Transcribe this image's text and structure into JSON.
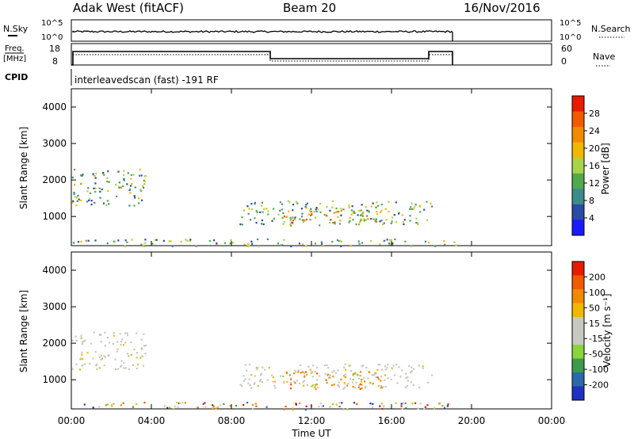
{
  "header": {
    "station": "Adak West (fitACF)",
    "beam": "Beam 20",
    "date": "16/Nov/2016"
  },
  "panels": {
    "nsky": {
      "label": "N.Sky",
      "right_label": "N.Search",
      "ticks_left": [
        "10^5",
        "10^0"
      ],
      "ticks_right": [
        "10^5",
        "10^0"
      ]
    },
    "freq": {
      "label_line1": "Freq.",
      "label_line2": "[MHz]",
      "right_label": "Nave",
      "ticks_left": [
        "18",
        "8"
      ],
      "ticks_right": [
        "60",
        "0"
      ]
    },
    "cpid": {
      "label": "CPID",
      "text": "interleavedscan (fast) -191 RF"
    }
  },
  "colors": {
    "power": [
      "#1a1aff",
      "#2a4aa8",
      "#3c8c8c",
      "#52a84a",
      "#a8d44a",
      "#f2b800",
      "#f28a00",
      "#f25a00",
      "#e81a00"
    ],
    "velocity": [
      "#e81a00",
      "#f25a00",
      "#f28a00",
      "#f2b800",
      "#c8c8c0",
      "#c8c8c0",
      "#8ad43c",
      "#3c9a4a",
      "#2a6aa8",
      "#2030c0"
    ]
  },
  "chart_data": [
    {
      "type": "heatmap",
      "name": "power",
      "ylabel": "Slant Range [km]",
      "yticks": [
        "4000",
        "3000",
        "2000",
        "1000"
      ],
      "ytick_values": [
        4000,
        3000,
        2000,
        1000
      ],
      "ylim": [
        200,
        4500
      ],
      "xlim": [
        0,
        24
      ],
      "colorbar_label": "Power [dB]",
      "colorbar_ticks": [
        "28",
        "24",
        "20",
        "16",
        "12",
        "8",
        "4"
      ],
      "colorbar_values": [
        28,
        24,
        20,
        16,
        12,
        8,
        4
      ],
      "colorbar_range": [
        0,
        32
      ],
      "regions": [
        {
          "t0": 0.0,
          "t1": 3.7,
          "r0": 1300,
          "r1": 2350,
          "level": 10
        },
        {
          "t0": 8.4,
          "t1": 18.0,
          "r0": 800,
          "r1": 1450,
          "level": 12
        },
        {
          "t0": 10.5,
          "t1": 15.5,
          "r0": 750,
          "r1": 1200,
          "level": 20
        },
        {
          "t0": 0.0,
          "t1": 19.2,
          "r0": 200,
          "r1": 400,
          "level": 12
        }
      ]
    },
    {
      "type": "heatmap",
      "name": "velocity",
      "ylabel": "Slant Range [km]",
      "yticks": [
        "4000",
        "3000",
        "2000",
        "1000"
      ],
      "ytick_values": [
        4000,
        3000,
        2000,
        1000
      ],
      "ylim": [
        200,
        4500
      ],
      "xlim": [
        0,
        24
      ],
      "xlabel": "Time UT",
      "xticks": [
        "00:00",
        "04:00",
        "08:00",
        "12:00",
        "16:00",
        "20:00",
        "00:00"
      ],
      "xtick_values": [
        0,
        4,
        8,
        12,
        16,
        20,
        24
      ],
      "colorbar_label": "Velocity [m s⁻¹]",
      "colorbar_ticks": [
        "200",
        "100",
        "50",
        "15",
        "-15",
        "-50",
        "-100",
        "-200"
      ],
      "regions": [
        {
          "t0": 0.0,
          "t1": 3.7,
          "r0": 1300,
          "r1": 2350,
          "level": "grey"
        },
        {
          "t0": 8.4,
          "t1": 18.0,
          "r0": 800,
          "r1": 1450,
          "level": "grey"
        },
        {
          "t0": 10.5,
          "t1": 15.5,
          "r0": 750,
          "r1": 1250,
          "level": "orange"
        },
        {
          "t0": 0.0,
          "t1": 19.2,
          "r0": 200,
          "r1": 400,
          "level": "mixed"
        }
      ]
    }
  ]
}
